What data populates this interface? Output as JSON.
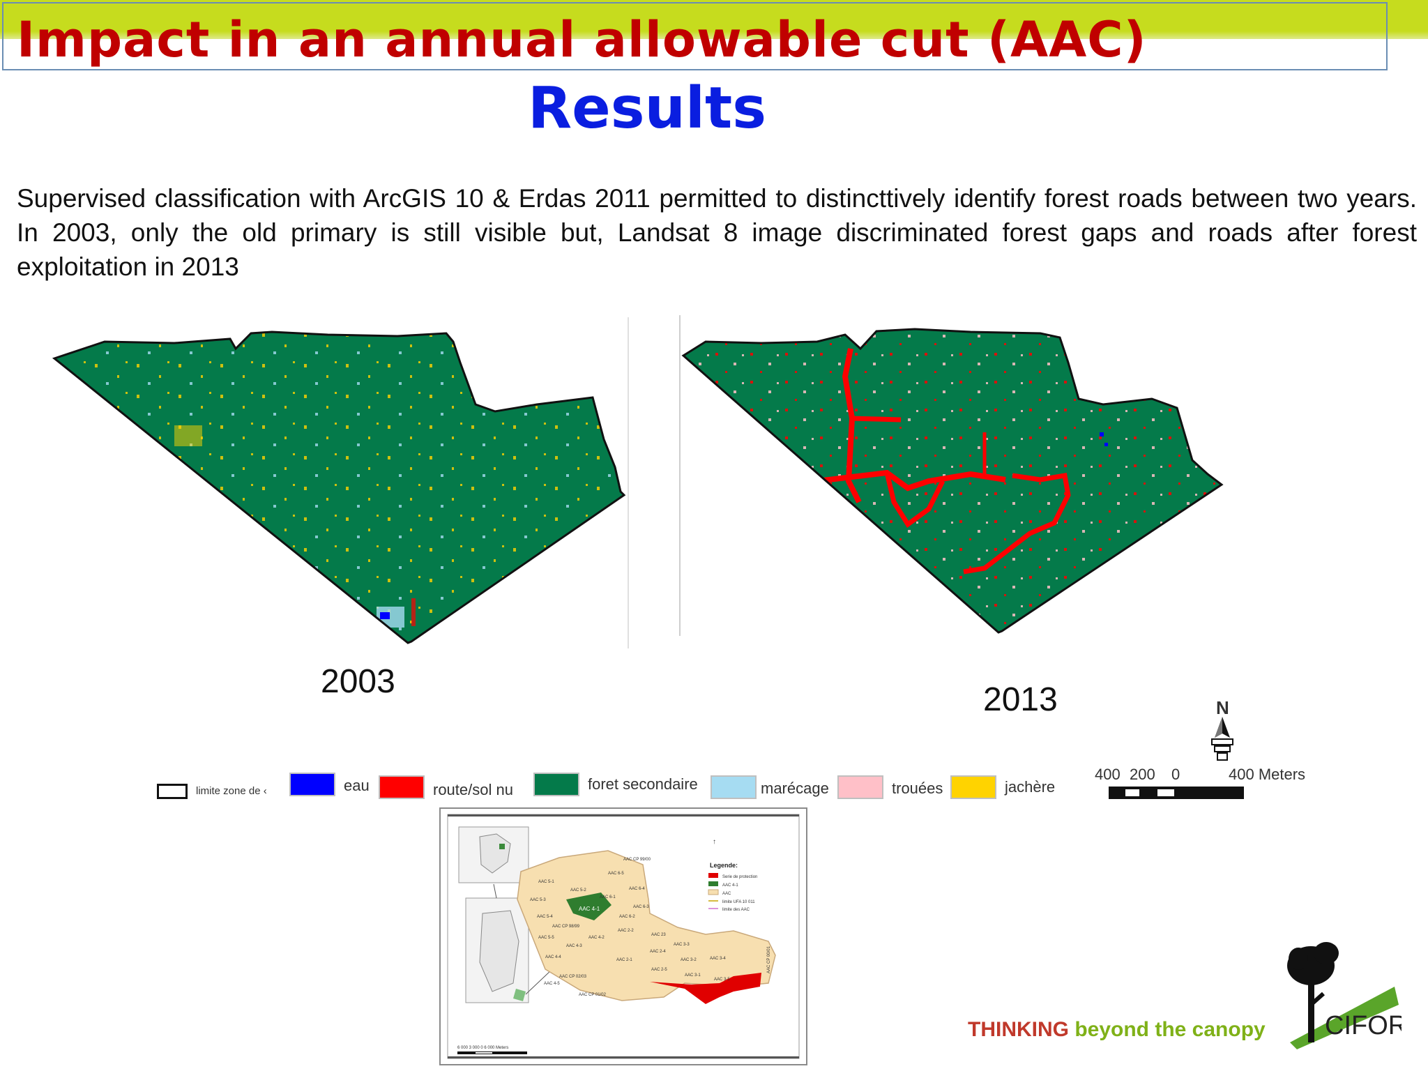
{
  "slide": {
    "title": "Impact in an annual allowable cut (AAC)",
    "subtitle": "Results",
    "body": "Supervised classification with ArcGIS 10 &  Erdas 2011 permitted to  distincttively identify forest roads between two years. In 2003, only the old primary is still visible but, Landsat 8 image discriminated forest gaps and roads after  forest exploitation in 2013"
  },
  "maps": {
    "year_left": "2003",
    "year_right": "2013"
  },
  "legend": {
    "items": [
      {
        "label": "limite zone de ‹",
        "color": "#ffffff"
      },
      {
        "label": "eau",
        "color": "#0000ff"
      },
      {
        "label": "route/sol nu",
        "color": "#ff0000"
      },
      {
        "label": "foret secondaire",
        "color": "#047a4a"
      },
      {
        "label": "marécage",
        "color": "#a6dcf2"
      },
      {
        "label": "trouées",
        "color": "#ffc0c8"
      },
      {
        "label": "jachère",
        "color": "#ffd300"
      }
    ]
  },
  "scalebar": {
    "north": "N",
    "ticks": [
      "400",
      "200",
      "0",
      "400 Meters"
    ]
  },
  "inset": {
    "legend_title": "Legende:",
    "legend_items": [
      "Serie de protection",
      "AAC 4-1",
      "AAC",
      "limite UFA 10 011",
      "limite des AAC"
    ],
    "block_labels": [
      "AAC CP 99/00",
      "AAC 6-5",
      "AAC 5-1",
      "AAC 5-2",
      "AAC 6-4",
      "AAC 5-3",
      "AAC 6-1",
      "AAC 4-1",
      "AAC 6-3",
      "AAC 5-4",
      "AAC 6-2",
      "AAC CP 98/99",
      "AAC 2-2",
      "AAC 5-5",
      "AAC 4-2",
      "AAC 23",
      "AAC 4-3",
      "AAC 3-3",
      "AAC 2-4",
      "AAC 4-4",
      "AAC 2-1",
      "AAC 3-2",
      "AAC 3-4",
      "AAC 2-5",
      "AAC 3-1",
      "AAC CP 02/03",
      "AAC 3-5",
      "AAC 4-5",
      "AAC CP 01/02",
      "AAC CP 00/01"
    ],
    "scale_text": "6 000   3 000   0   6 000 Meters"
  },
  "brand": {
    "tag_strong": "THINKING",
    "tag_rest": " beyond the canopy",
    "logo_text": "CIFOR"
  }
}
